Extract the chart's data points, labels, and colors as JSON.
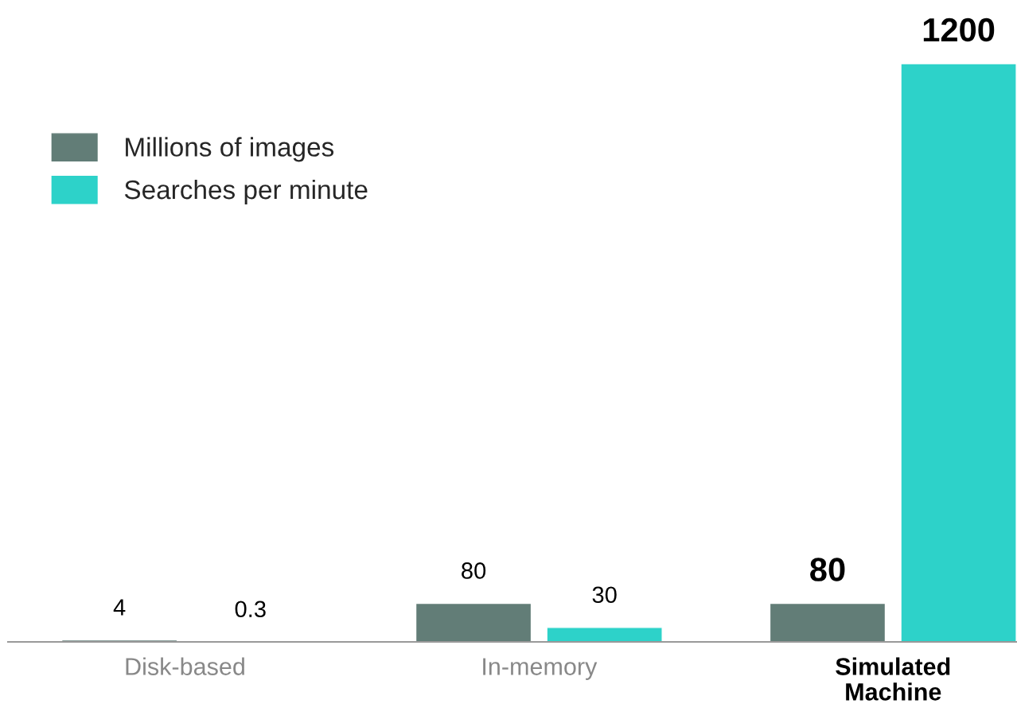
{
  "chart_data": {
    "type": "bar",
    "categories": [
      "Disk-based",
      "In-memory",
      "Simulated\nMachine"
    ],
    "series": [
      {
        "name": "Millions of images",
        "color": "#627d77",
        "values": [
          4,
          80,
          80
        ]
      },
      {
        "name": "Searches per minute",
        "color": "#2dd2c9",
        "values": [
          0.3,
          30,
          1200
        ]
      }
    ],
    "data_labels": true,
    "legend": "top left",
    "grid": false
  }
}
